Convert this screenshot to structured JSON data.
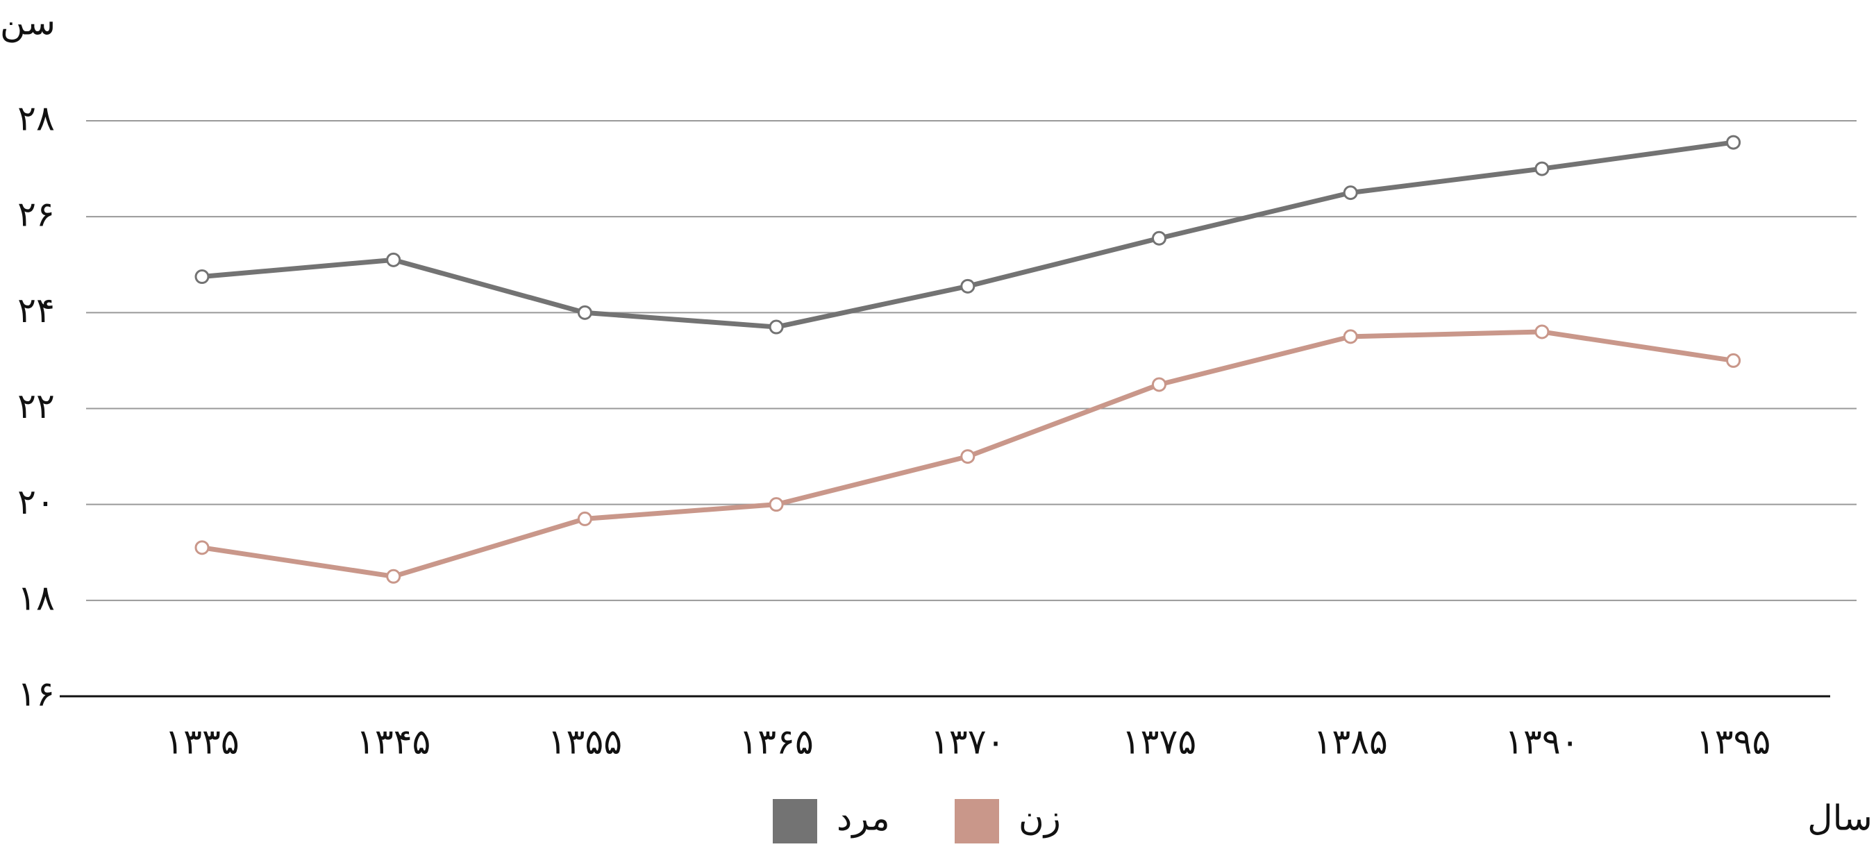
{
  "chart_data": {
    "type": "line",
    "y_label": "سن",
    "x_label": "سال",
    "categories": [
      "۱۳۳۵",
      "۱۳۴۵",
      "۱۳۵۵",
      "۱۳۶۵",
      "۱۳۷۰",
      "۱۳۷۵",
      "۱۳۸۵",
      "۱۳۹۰",
      "۱۳۹۵"
    ],
    "series": [
      {
        "name": "مرد",
        "color": "#737373",
        "values": [
          24.75,
          25.1,
          24.0,
          23.7,
          24.55,
          25.55,
          26.5,
          27.0,
          27.55
        ]
      },
      {
        "name": "زن",
        "color": "#c9978a",
        "values": [
          19.1,
          18.5,
          19.7,
          20.0,
          21.0,
          22.5,
          23.5,
          23.6,
          23.0
        ]
      }
    ],
    "ylim": [
      16,
      28
    ],
    "yticks": [
      {
        "value": 16,
        "label": "۱۶"
      },
      {
        "value": 18,
        "label": "۱۸"
      },
      {
        "value": 20,
        "label": "۲۰"
      },
      {
        "value": 22,
        "label": "۲۲"
      },
      {
        "value": 24,
        "label": "۲۴"
      },
      {
        "value": 26,
        "label": "۲۶"
      },
      {
        "value": 28,
        "label": "۲۸"
      }
    ],
    "grid": true,
    "legend": "bottom"
  }
}
